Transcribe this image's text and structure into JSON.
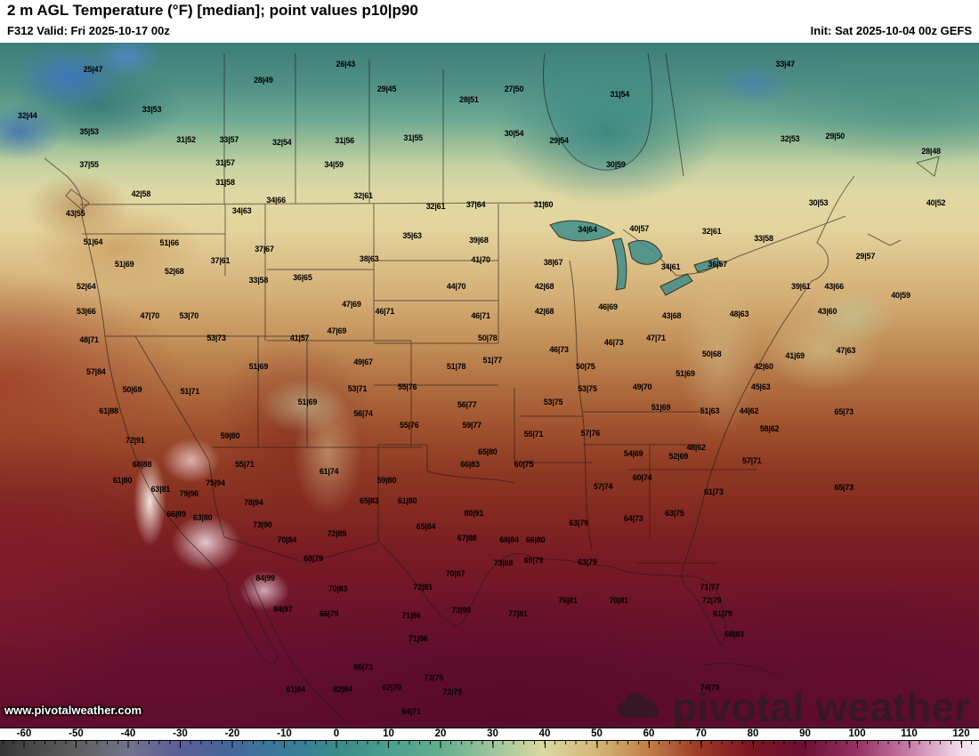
{
  "header": {
    "title": "2 m AGL Temperature (°F) [median]; point values p10|p90",
    "valid_label": "F312 Valid: Fri 2025-10-17 00z",
    "init_label": "Init: Sat 2025-10-04 00z GEFS"
  },
  "watermarks": {
    "site_url": "www.pivotalweather.com",
    "brand": "pivotal weather"
  },
  "colorbar": {
    "ticks": [
      "-60",
      "-50",
      "-40",
      "-30",
      "-20",
      "-10",
      "0",
      "10",
      "20",
      "30",
      "40",
      "50",
      "60",
      "70",
      "80",
      "90",
      "100",
      "110",
      "120"
    ],
    "first_tick_pct": 2.45,
    "tick_step_pct": 5.3185,
    "gradient_stops": [
      {
        "p": 0,
        "c": "#353535"
      },
      {
        "p": 2.5,
        "c": "#454545"
      },
      {
        "p": 7.8,
        "c": "#5e5e5e"
      },
      {
        "p": 13.1,
        "c": "#73738e"
      },
      {
        "p": 18.4,
        "c": "#5a5f96"
      },
      {
        "p": 23.7,
        "c": "#44679a"
      },
      {
        "p": 29.0,
        "c": "#3a7a9a"
      },
      {
        "p": 34.3,
        "c": "#3a8a8a"
      },
      {
        "p": 39.6,
        "c": "#4a9e8e"
      },
      {
        "p": 45.0,
        "c": "#63ae8e"
      },
      {
        "p": 50.2,
        "c": "#9cc49c"
      },
      {
        "p": 55.5,
        "c": "#d9d9a0"
      },
      {
        "p": 60.8,
        "c": "#d4b878"
      },
      {
        "p": 66.1,
        "c": "#c08048"
      },
      {
        "p": 71.4,
        "c": "#9c3a24"
      },
      {
        "p": 76.7,
        "c": "#7a1622"
      },
      {
        "p": 82.0,
        "c": "#6b0f32"
      },
      {
        "p": 87.3,
        "c": "#933060"
      },
      {
        "p": 92.6,
        "c": "#c678a4"
      },
      {
        "p": 97.9,
        "c": "#eed8e6"
      },
      {
        "p": 100,
        "c": "#f6eef4"
      }
    ]
  },
  "map": {
    "points": [
      {
        "x": 9.5,
        "y": 3.9,
        "v": "25|47"
      },
      {
        "x": 35.3,
        "y": 3.1,
        "v": "26|43"
      },
      {
        "x": 80.2,
        "y": 3.1,
        "v": "33|47"
      },
      {
        "x": 26.9,
        "y": 5.5,
        "v": "28|49"
      },
      {
        "x": 39.5,
        "y": 6.8,
        "v": "29|45"
      },
      {
        "x": 52.5,
        "y": 6.8,
        "v": "27|50"
      },
      {
        "x": 63.3,
        "y": 7.5,
        "v": "31|54"
      },
      {
        "x": 2.8,
        "y": 10.6,
        "v": "32|44"
      },
      {
        "x": 15.5,
        "y": 9.7,
        "v": "33|53"
      },
      {
        "x": 47.9,
        "y": 8.3,
        "v": "28|51"
      },
      {
        "x": 9.1,
        "y": 13.0,
        "v": "35|53"
      },
      {
        "x": 19.0,
        "y": 14.2,
        "v": "31|52"
      },
      {
        "x": 23.4,
        "y": 14.2,
        "v": "33|57"
      },
      {
        "x": 28.8,
        "y": 14.5,
        "v": "32|54"
      },
      {
        "x": 35.2,
        "y": 14.3,
        "v": "31|56"
      },
      {
        "x": 42.2,
        "y": 13.9,
        "v": "31|55"
      },
      {
        "x": 52.5,
        "y": 13.2,
        "v": "30|54"
      },
      {
        "x": 57.1,
        "y": 14.3,
        "v": "29|54"
      },
      {
        "x": 80.7,
        "y": 14.0,
        "v": "32|53"
      },
      {
        "x": 85.3,
        "y": 13.6,
        "v": "29|50"
      },
      {
        "x": 95.1,
        "y": 15.8,
        "v": "28|48"
      },
      {
        "x": 9.1,
        "y": 17.8,
        "v": "37|55"
      },
      {
        "x": 23.0,
        "y": 17.5,
        "v": "31|57"
      },
      {
        "x": 34.1,
        "y": 17.8,
        "v": "34|59"
      },
      {
        "x": 62.9,
        "y": 17.8,
        "v": "30|59"
      },
      {
        "x": 14.4,
        "y": 22.1,
        "v": "42|58"
      },
      {
        "x": 23.0,
        "y": 20.4,
        "v": "31|58"
      },
      {
        "x": 28.2,
        "y": 23.0,
        "v": "34|66"
      },
      {
        "x": 24.7,
        "y": 24.5,
        "v": "34|63"
      },
      {
        "x": 37.1,
        "y": 22.3,
        "v": "32|61"
      },
      {
        "x": 44.5,
        "y": 23.9,
        "v": "32|61"
      },
      {
        "x": 48.6,
        "y": 23.6,
        "v": "37|64"
      },
      {
        "x": 55.5,
        "y": 23.6,
        "v": "31|60"
      },
      {
        "x": 83.6,
        "y": 23.4,
        "v": "30|53"
      },
      {
        "x": 95.6,
        "y": 23.4,
        "v": "40|52"
      },
      {
        "x": 7.7,
        "y": 24.9,
        "v": "43|55"
      },
      {
        "x": 9.5,
        "y": 29.1,
        "v": "51|64"
      },
      {
        "x": 17.3,
        "y": 29.2,
        "v": "51|66"
      },
      {
        "x": 27.0,
        "y": 30.1,
        "v": "37|67"
      },
      {
        "x": 42.1,
        "y": 28.2,
        "v": "35|63"
      },
      {
        "x": 48.9,
        "y": 28.8,
        "v": "39|68"
      },
      {
        "x": 60.0,
        "y": 27.3,
        "v": "34|64"
      },
      {
        "x": 65.3,
        "y": 27.1,
        "v": "40|57"
      },
      {
        "x": 72.7,
        "y": 27.5,
        "v": "32|61"
      },
      {
        "x": 78.0,
        "y": 28.6,
        "v": "33|58"
      },
      {
        "x": 12.7,
        "y": 32.3,
        "v": "51|69"
      },
      {
        "x": 17.8,
        "y": 33.4,
        "v": "52|68"
      },
      {
        "x": 22.5,
        "y": 31.8,
        "v": "37|61"
      },
      {
        "x": 37.7,
        "y": 31.6,
        "v": "38|63"
      },
      {
        "x": 49.1,
        "y": 31.7,
        "v": "41|70"
      },
      {
        "x": 56.5,
        "y": 32.1,
        "v": "38|67"
      },
      {
        "x": 68.5,
        "y": 32.7,
        "v": "34|61"
      },
      {
        "x": 73.3,
        "y": 32.3,
        "v": "36|57"
      },
      {
        "x": 88.4,
        "y": 31.2,
        "v": "29|57"
      },
      {
        "x": 8.8,
        "y": 35.6,
        "v": "52|64"
      },
      {
        "x": 26.4,
        "y": 34.7,
        "v": "33|58"
      },
      {
        "x": 30.9,
        "y": 34.3,
        "v": "36|65"
      },
      {
        "x": 46.6,
        "y": 35.6,
        "v": "44|70"
      },
      {
        "x": 55.6,
        "y": 35.6,
        "v": "42|68"
      },
      {
        "x": 81.8,
        "y": 35.6,
        "v": "39|61"
      },
      {
        "x": 85.2,
        "y": 35.6,
        "v": "43|66"
      },
      {
        "x": 92.0,
        "y": 36.9,
        "v": "40|59"
      },
      {
        "x": 8.8,
        "y": 39.2,
        "v": "53|66"
      },
      {
        "x": 15.3,
        "y": 39.9,
        "v": "47|70"
      },
      {
        "x": 19.3,
        "y": 39.9,
        "v": "53|70"
      },
      {
        "x": 35.9,
        "y": 38.2,
        "v": "47|69"
      },
      {
        "x": 39.3,
        "y": 39.2,
        "v": "46|71"
      },
      {
        "x": 49.1,
        "y": 39.9,
        "v": "46|71"
      },
      {
        "x": 55.6,
        "y": 39.2,
        "v": "42|68"
      },
      {
        "x": 62.1,
        "y": 38.6,
        "v": "46|69"
      },
      {
        "x": 68.6,
        "y": 39.9,
        "v": "43|68"
      },
      {
        "x": 75.5,
        "y": 39.6,
        "v": "48|63"
      },
      {
        "x": 84.5,
        "y": 39.2,
        "v": "43|60"
      },
      {
        "x": 9.1,
        "y": 43.4,
        "v": "48|71"
      },
      {
        "x": 22.1,
        "y": 43.1,
        "v": "53|73"
      },
      {
        "x": 30.6,
        "y": 43.1,
        "v": "41|57"
      },
      {
        "x": 34.4,
        "y": 42.1,
        "v": "47|69"
      },
      {
        "x": 49.8,
        "y": 43.1,
        "v": "50|78"
      },
      {
        "x": 57.1,
        "y": 44.8,
        "v": "46|73"
      },
      {
        "x": 62.7,
        "y": 43.8,
        "v": "46|73"
      },
      {
        "x": 67.0,
        "y": 43.1,
        "v": "47|71"
      },
      {
        "x": 72.7,
        "y": 45.5,
        "v": "50|68"
      },
      {
        "x": 81.2,
        "y": 45.7,
        "v": "41|69"
      },
      {
        "x": 86.4,
        "y": 44.9,
        "v": "47|63"
      },
      {
        "x": 78.0,
        "y": 47.3,
        "v": "42|60"
      },
      {
        "x": 9.8,
        "y": 48.1,
        "v": "57|84"
      },
      {
        "x": 37.1,
        "y": 46.6,
        "v": "49|67"
      },
      {
        "x": 46.6,
        "y": 47.3,
        "v": "51|78"
      },
      {
        "x": 50.3,
        "y": 46.4,
        "v": "51|77"
      },
      {
        "x": 59.8,
        "y": 47.3,
        "v": "50|75"
      },
      {
        "x": 70.0,
        "y": 48.3,
        "v": "51|69"
      },
      {
        "x": 13.5,
        "y": 50.6,
        "v": "50|69"
      },
      {
        "x": 19.4,
        "y": 50.9,
        "v": "51|71"
      },
      {
        "x": 26.4,
        "y": 47.3,
        "v": "51|69"
      },
      {
        "x": 36.5,
        "y": 50.5,
        "v": "53|71"
      },
      {
        "x": 41.6,
        "y": 50.3,
        "v": "55|76"
      },
      {
        "x": 60.0,
        "y": 50.5,
        "v": "53|75"
      },
      {
        "x": 65.6,
        "y": 50.3,
        "v": "49|70"
      },
      {
        "x": 77.7,
        "y": 50.3,
        "v": "45|63"
      },
      {
        "x": 11.1,
        "y": 53.8,
        "v": "61|88"
      },
      {
        "x": 31.4,
        "y": 52.5,
        "v": "51|69"
      },
      {
        "x": 37.1,
        "y": 54.2,
        "v": "56|74"
      },
      {
        "x": 47.7,
        "y": 52.9,
        "v": "56|77"
      },
      {
        "x": 56.5,
        "y": 52.5,
        "v": "53|75"
      },
      {
        "x": 67.5,
        "y": 53.2,
        "v": "51|69"
      },
      {
        "x": 72.5,
        "y": 53.8,
        "v": "51|63"
      },
      {
        "x": 76.5,
        "y": 53.8,
        "v": "44|62"
      },
      {
        "x": 78.6,
        "y": 56.4,
        "v": "58|62"
      },
      {
        "x": 86.2,
        "y": 53.9,
        "v": "65|73"
      },
      {
        "x": 13.8,
        "y": 58.1,
        "v": "72|91"
      },
      {
        "x": 23.5,
        "y": 57.4,
        "v": "59|80"
      },
      {
        "x": 41.8,
        "y": 55.8,
        "v": "55|76"
      },
      {
        "x": 48.2,
        "y": 55.8,
        "v": "59|77"
      },
      {
        "x": 60.3,
        "y": 57.0,
        "v": "57|76"
      },
      {
        "x": 54.5,
        "y": 57.1,
        "v": "55|71"
      },
      {
        "x": 71.1,
        "y": 59.1,
        "v": "48|62"
      },
      {
        "x": 76.8,
        "y": 61.0,
        "v": "57|71"
      },
      {
        "x": 14.5,
        "y": 61.6,
        "v": "68|88"
      },
      {
        "x": 12.5,
        "y": 63.9,
        "v": "61|80"
      },
      {
        "x": 16.4,
        "y": 65.2,
        "v": "63|81"
      },
      {
        "x": 25.0,
        "y": 61.6,
        "v": "55|71"
      },
      {
        "x": 33.6,
        "y": 62.6,
        "v": "61|74"
      },
      {
        "x": 49.8,
        "y": 59.7,
        "v": "65|80"
      },
      {
        "x": 48.0,
        "y": 61.6,
        "v": "66|83"
      },
      {
        "x": 53.5,
        "y": 61.6,
        "v": "60|75"
      },
      {
        "x": 64.7,
        "y": 60.0,
        "v": "54|69"
      },
      {
        "x": 69.3,
        "y": 60.4,
        "v": "52|69"
      },
      {
        "x": 22.0,
        "y": 64.3,
        "v": "75|94"
      },
      {
        "x": 19.3,
        "y": 65.8,
        "v": "79|96"
      },
      {
        "x": 39.5,
        "y": 63.9,
        "v": "59|80"
      },
      {
        "x": 61.6,
        "y": 64.8,
        "v": "57|74"
      },
      {
        "x": 65.6,
        "y": 63.5,
        "v": "60|74"
      },
      {
        "x": 72.9,
        "y": 65.6,
        "v": "61|73"
      },
      {
        "x": 86.2,
        "y": 64.9,
        "v": "65|73"
      },
      {
        "x": 25.9,
        "y": 67.1,
        "v": "78|94"
      },
      {
        "x": 37.7,
        "y": 66.9,
        "v": "65|83"
      },
      {
        "x": 41.6,
        "y": 66.9,
        "v": "61|80"
      },
      {
        "x": 48.4,
        "y": 68.7,
        "v": "80|91"
      },
      {
        "x": 59.1,
        "y": 70.1,
        "v": "63|79"
      },
      {
        "x": 64.7,
        "y": 69.5,
        "v": "64|73"
      },
      {
        "x": 68.9,
        "y": 68.7,
        "v": "63|75"
      },
      {
        "x": 18.0,
        "y": 68.8,
        "v": "66|89"
      },
      {
        "x": 26.8,
        "y": 70.4,
        "v": "73|90"
      },
      {
        "x": 20.7,
        "y": 69.4,
        "v": "63|80"
      },
      {
        "x": 29.3,
        "y": 72.6,
        "v": "70|84"
      },
      {
        "x": 34.4,
        "y": 71.7,
        "v": "72|85"
      },
      {
        "x": 43.5,
        "y": 70.6,
        "v": "65|84"
      },
      {
        "x": 47.7,
        "y": 72.3,
        "v": "67|88"
      },
      {
        "x": 52.0,
        "y": 72.6,
        "v": "68|84"
      },
      {
        "x": 54.7,
        "y": 72.6,
        "v": "66|80"
      },
      {
        "x": 51.4,
        "y": 76.0,
        "v": "73|88"
      },
      {
        "x": 54.5,
        "y": 75.6,
        "v": "69|79"
      },
      {
        "x": 60.0,
        "y": 75.8,
        "v": "63|79"
      },
      {
        "x": 32.0,
        "y": 75.3,
        "v": "68|79"
      },
      {
        "x": 27.1,
        "y": 78.2,
        "v": "84|99"
      },
      {
        "x": 34.5,
        "y": 79.7,
        "v": "70|83"
      },
      {
        "x": 43.2,
        "y": 79.5,
        "v": "72|81"
      },
      {
        "x": 46.5,
        "y": 77.5,
        "v": "70|87"
      },
      {
        "x": 72.5,
        "y": 79.5,
        "v": "71|77"
      },
      {
        "x": 72.7,
        "y": 81.4,
        "v": "72|79"
      },
      {
        "x": 28.9,
        "y": 82.7,
        "v": "84|97"
      },
      {
        "x": 33.6,
        "y": 83.4,
        "v": "66|79"
      },
      {
        "x": 42.0,
        "y": 83.6,
        "v": "71|86"
      },
      {
        "x": 47.1,
        "y": 82.9,
        "v": "73|90"
      },
      {
        "x": 52.9,
        "y": 83.4,
        "v": "77|81"
      },
      {
        "x": 58.0,
        "y": 81.4,
        "v": "76|81"
      },
      {
        "x": 63.2,
        "y": 81.4,
        "v": "70|81"
      },
      {
        "x": 73.8,
        "y": 83.4,
        "v": "61|79"
      },
      {
        "x": 75.0,
        "y": 86.4,
        "v": "68|83"
      },
      {
        "x": 42.7,
        "y": 87.0,
        "v": "71|86"
      },
      {
        "x": 37.1,
        "y": 91.2,
        "v": "66|73"
      },
      {
        "x": 40.0,
        "y": 94.2,
        "v": "62|70"
      },
      {
        "x": 42.0,
        "y": 97.7,
        "v": "64|71"
      },
      {
        "x": 44.3,
        "y": 92.7,
        "v": "73|75"
      },
      {
        "x": 46.2,
        "y": 94.8,
        "v": "72|79"
      },
      {
        "x": 35.0,
        "y": 94.4,
        "v": "82|84"
      },
      {
        "x": 30.2,
        "y": 94.4,
        "v": "61|84"
      },
      {
        "x": 72.5,
        "y": 94.2,
        "v": "74|79"
      }
    ]
  }
}
